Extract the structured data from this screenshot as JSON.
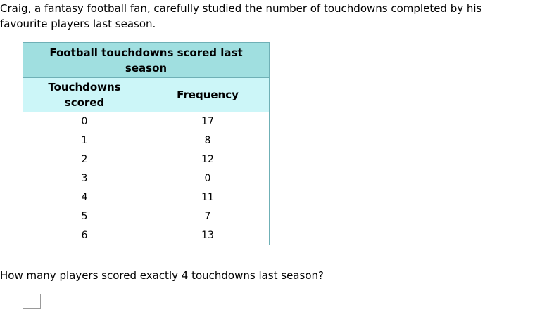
{
  "intro": "Craig, a fantasy football fan, carefully studied the number of touchdowns completed by his favourite players last season.",
  "table": {
    "title": "Football touchdowns scored last season",
    "headers": [
      "Touchdowns scored",
      "Frequency"
    ],
    "rows": [
      {
        "touchdowns": "0",
        "frequency": "17"
      },
      {
        "touchdowns": "1",
        "frequency": "8"
      },
      {
        "touchdowns": "2",
        "frequency": "12"
      },
      {
        "touchdowns": "3",
        "frequency": "0"
      },
      {
        "touchdowns": "4",
        "frequency": "11"
      },
      {
        "touchdowns": "5",
        "frequency": "7"
      },
      {
        "touchdowns": "6",
        "frequency": "13"
      }
    ]
  },
  "question": "How many players scored exactly 4 touchdowns last season?",
  "answer": {
    "value": ""
  },
  "chart_data": {
    "type": "table",
    "title": "Football touchdowns scored last season",
    "columns": [
      "Touchdowns scored",
      "Frequency"
    ],
    "rows": [
      [
        0,
        17
      ],
      [
        1,
        8
      ],
      [
        2,
        12
      ],
      [
        3,
        0
      ],
      [
        4,
        11
      ],
      [
        5,
        7
      ],
      [
        6,
        13
      ]
    ]
  }
}
